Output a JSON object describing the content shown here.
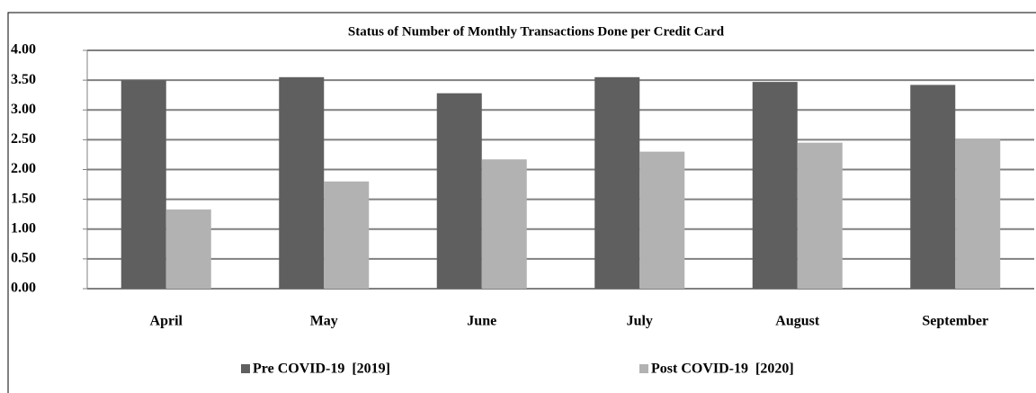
{
  "chart_data": {
    "type": "bar",
    "title": "Status of Number of Monthly Transactions Done per Credit Card",
    "categories": [
      "April",
      "May",
      "June",
      "July",
      "August",
      "September"
    ],
    "series": [
      {
        "name": "Pre COVID-19  [2019]",
        "color": "#5f5f5f",
        "values": [
          3.5,
          3.55,
          3.28,
          3.55,
          3.47,
          3.42
        ]
      },
      {
        "name": "Post COVID-19  [2020]",
        "color": "#b2b2b2",
        "values": [
          1.33,
          1.8,
          2.17,
          2.3,
          2.45,
          2.52
        ]
      }
    ],
    "ylim": [
      0,
      4
    ],
    "yticks": [
      {
        "value": 0,
        "label": "0.00"
      },
      {
        "value": 0.5,
        "label": "0.50"
      },
      {
        "value": 1,
        "label": "1.00"
      },
      {
        "value": 1.5,
        "label": "1.50"
      },
      {
        "value": 2,
        "label": "2.00"
      },
      {
        "value": 2.5,
        "label": "2.50"
      },
      {
        "value": 3,
        "label": "3.00"
      },
      {
        "value": 3.5,
        "label": "3.50"
      },
      {
        "value": 4,
        "label": "4.00"
      }
    ],
    "grid": true
  }
}
